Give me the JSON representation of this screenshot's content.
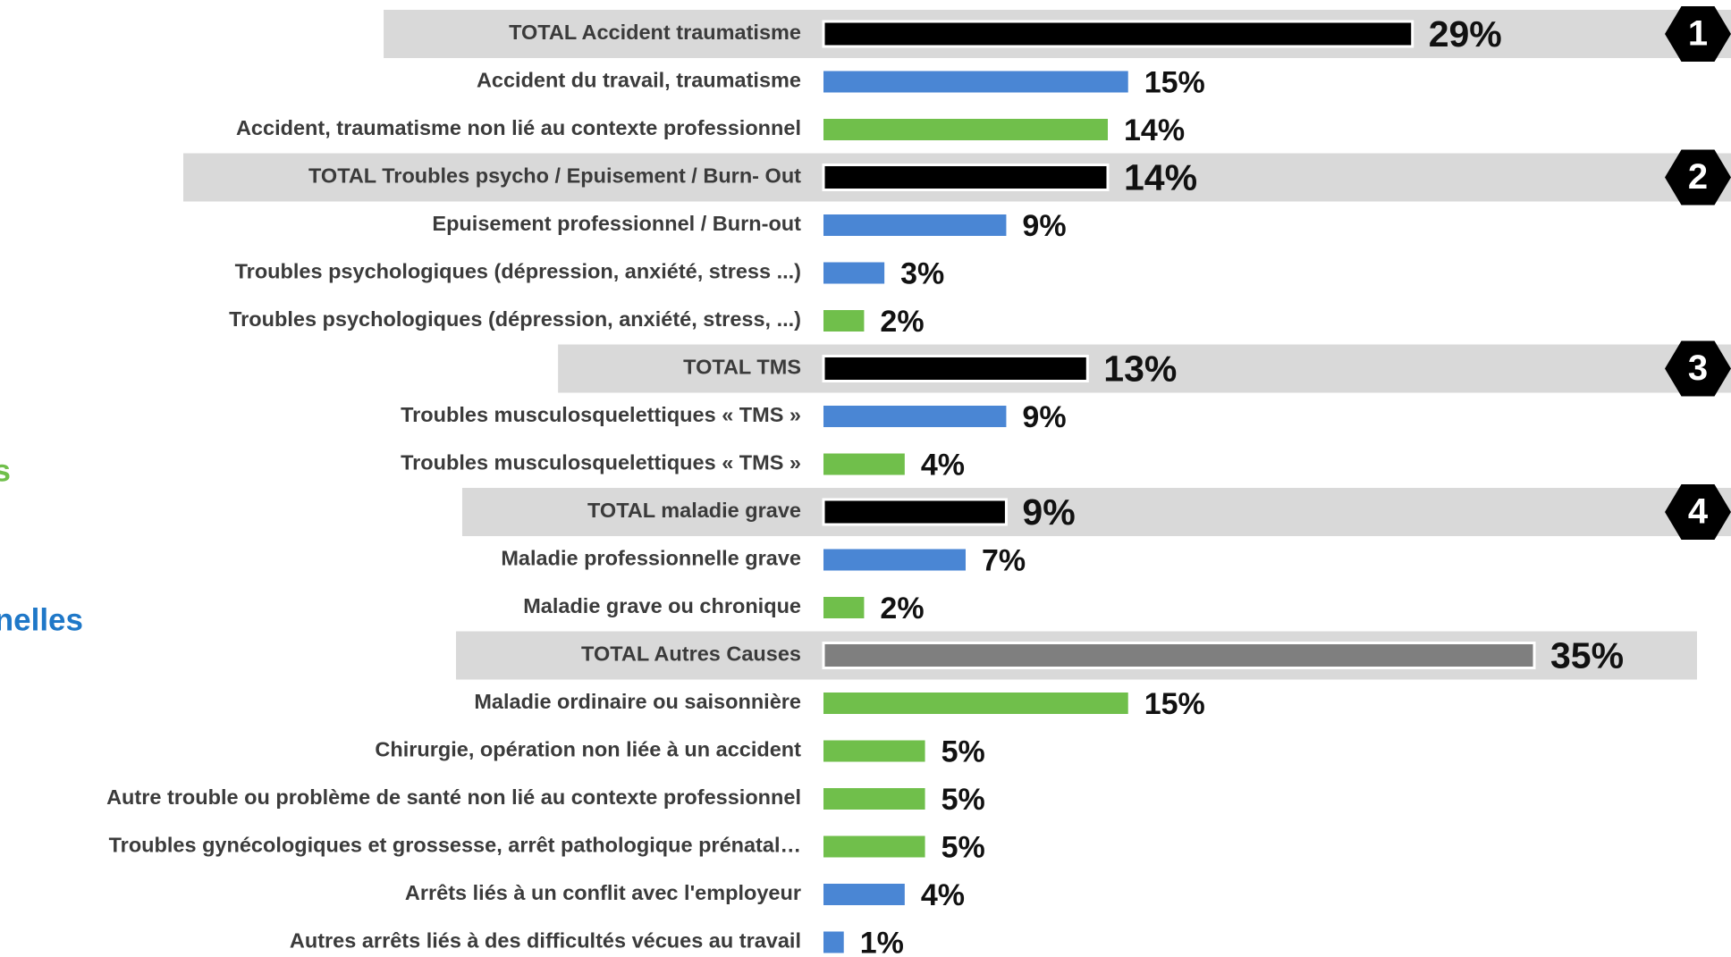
{
  "chart_data": {
    "type": "bar",
    "orientation": "horizontal",
    "categories": [
      "TOTAL Accident traumatisme",
      "Accident du travail, traumatisme",
      "Accident, traumatisme non lié au contexte professionnel",
      "TOTAL Troubles psycho / Epuisement / Burn- Out",
      "Epuisement professionnel / Burn-out",
      "Troubles psychologiques (dépression, anxiété, stress ...)",
      "Troubles psychologiques (dépression, anxiété, stress, ...)",
      "TOTAL TMS",
      "Troubles musculosquelettiques « TMS »",
      "Troubles musculosquelettiques « TMS »",
      "TOTAL maladie grave",
      "Maladie professionnelle grave",
      "Maladie grave  ou chronique",
      "TOTAL Autres Causes",
      "Maladie ordinaire ou saisonnière",
      "Chirurgie, opération non liée à un accident",
      "Autre trouble ou problème de santé non lié au contexte professionnel",
      "Troubles gynécologiques et grossesse, arrêt pathologique prénatal…",
      "Arrêts liés à un conflit avec l'employeur",
      "Autres arrêts liés à des difficultés vécues au travail"
    ],
    "values": [
      29,
      15,
      14,
      14,
      9,
      3,
      2,
      13,
      9,
      4,
      9,
      7,
      2,
      35,
      15,
      5,
      5,
      5,
      4,
      1
    ],
    "value_labels": [
      "29%",
      "15%",
      "14%",
      "14%",
      "9%",
      "3%",
      "2%",
      "13%",
      "9%",
      "4%",
      "9%",
      "7%",
      "2%",
      "35%",
      "15%",
      "5%",
      "5%",
      "5%",
      "4%",
      "1%"
    ],
    "colors": [
      "#000000",
      "#4a86d4",
      "#70bf4b",
      "#000000",
      "#4a86d4",
      "#4a86d4",
      "#70bf4b",
      "#000000",
      "#4a86d4",
      "#70bf4b",
      "#000000",
      "#4a86d4",
      "#70bf4b",
      "#7f7f7f",
      "#70bf4b",
      "#70bf4b",
      "#70bf4b",
      "#70bf4b",
      "#4a86d4",
      "#4a86d4"
    ],
    "highlight": [
      true,
      false,
      false,
      true,
      false,
      false,
      false,
      true,
      false,
      false,
      true,
      false,
      false,
      true,
      false,
      false,
      false,
      false,
      false,
      false
    ],
    "badges": [
      "1",
      null,
      null,
      "2",
      null,
      null,
      null,
      "3",
      null,
      null,
      "4",
      null,
      null,
      null,
      null,
      null,
      null,
      null,
      null,
      null
    ],
    "annotations": [
      {
        "text": "s",
        "color": "#70bf4b"
      },
      {
        "text": "nelles",
        "color": "#1f78c8"
      }
    ]
  }
}
